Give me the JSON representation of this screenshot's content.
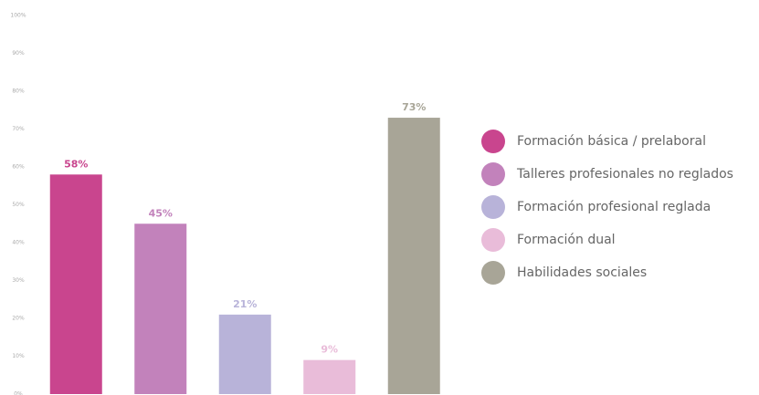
{
  "chart_data": {
    "type": "bar",
    "categories": [
      "Formación básica / prelaboral",
      "Talleres profesionales no reglados",
      "Formación profesional reglada",
      "Formación dual",
      "Habilidades sociales"
    ],
    "values": [
      58,
      45,
      21,
      9,
      73
    ],
    "value_labels": [
      "58%",
      "45%",
      "21%",
      "9%",
      "73%"
    ],
    "colors": [
      "#c9458e",
      "#c282bb",
      "#b8b3d9",
      "#e9bcd9",
      "#a8a597"
    ],
    "ylim": [
      0,
      100
    ],
    "yticks": [
      {
        "value": 0,
        "label": "0%"
      },
      {
        "value": 10,
        "label": "10%"
      },
      {
        "value": 20,
        "label": "20%"
      },
      {
        "value": 30,
        "label": "30%"
      },
      {
        "value": 40,
        "label": "40%"
      },
      {
        "value": 50,
        "label": "50%"
      },
      {
        "value": 60,
        "label": "60%"
      },
      {
        "value": 70,
        "label": "70%"
      },
      {
        "value": 80,
        "label": "80%"
      },
      {
        "value": 90,
        "label": "90%"
      },
      {
        "value": 100,
        "label": "100%"
      }
    ],
    "grid": false,
    "legend": "right"
  }
}
